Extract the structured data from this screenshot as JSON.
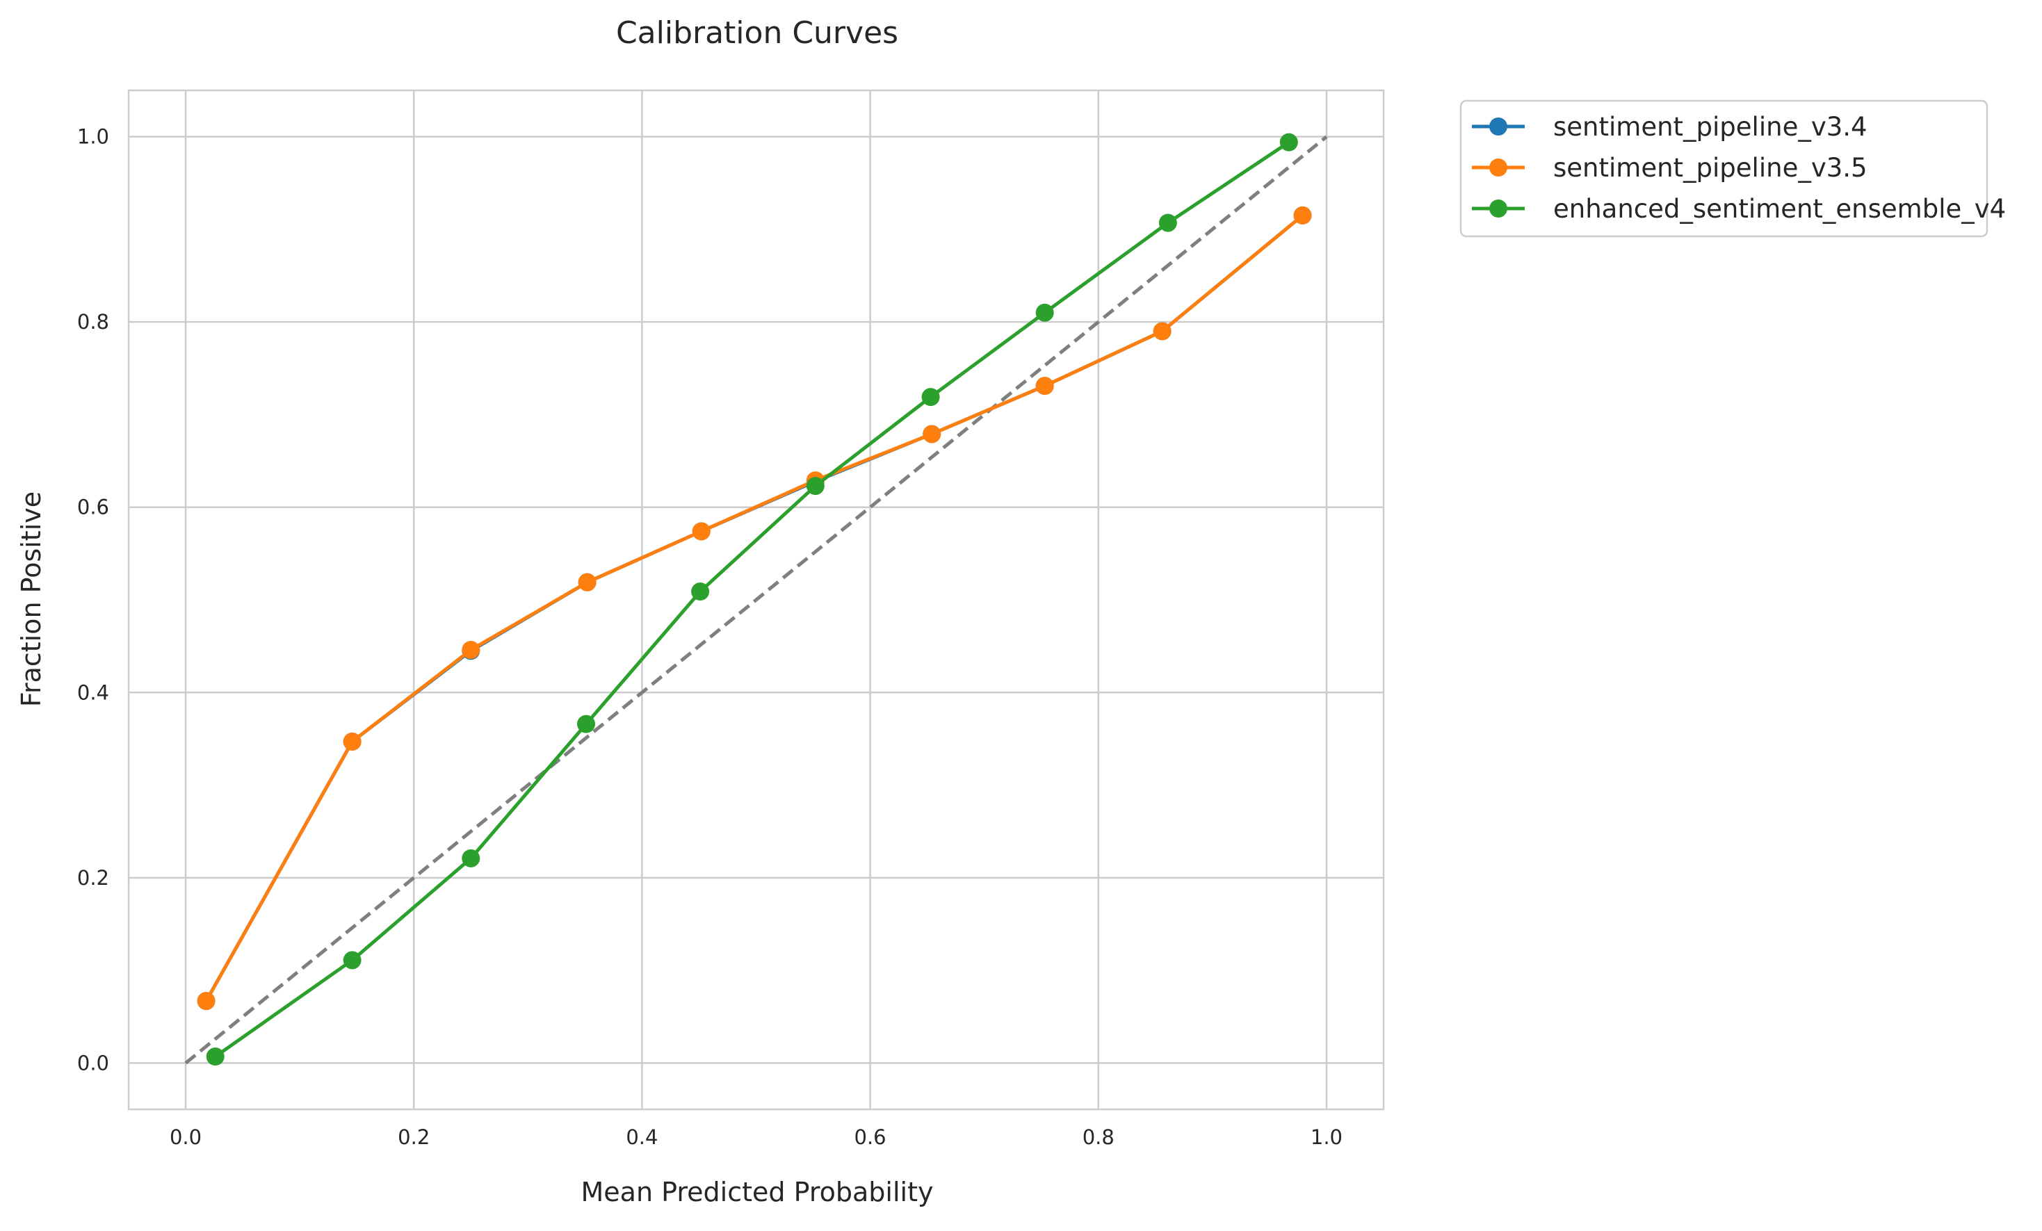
{
  "chart_data": {
    "type": "line",
    "title": "Calibration Curves",
    "xlabel": "Mean Predicted Probability",
    "ylabel": "Fraction Positive",
    "xlim": [
      -0.05,
      1.05
    ],
    "ylim": [
      -0.05,
      1.05
    ],
    "x_ticks": [
      0.0,
      0.2,
      0.4,
      0.6,
      0.8,
      1.0
    ],
    "y_ticks": [
      0.0,
      0.2,
      0.4,
      0.6,
      0.8,
      1.0
    ],
    "x_tick_labels": [
      "0.0",
      "0.2",
      "0.4",
      "0.6",
      "0.8",
      "1.0"
    ],
    "y_tick_labels": [
      "0.0",
      "0.2",
      "0.4",
      "0.6",
      "0.8",
      "1.0"
    ],
    "grid": true,
    "legend_position": "outside-top-right",
    "reference_line": {
      "style": "dashed",
      "color": "#7f7f7f",
      "x": [
        0.0,
        1.0
      ],
      "y": [
        0.0,
        1.0
      ]
    },
    "series": [
      {
        "name": "sentiment_pipeline_v3.4",
        "color": "#1f77b4",
        "marker": "circle",
        "x": [
          0.018,
          0.146,
          0.25,
          0.352,
          0.452,
          0.552,
          0.654,
          0.753,
          0.856,
          0.979
        ],
        "y": [
          0.067,
          0.347,
          0.445,
          0.519,
          0.574,
          0.628,
          0.679,
          0.731,
          0.79,
          0.915
        ]
      },
      {
        "name": "sentiment_pipeline_v3.5",
        "color": "#ff7f0e",
        "marker": "circle",
        "x": [
          0.018,
          0.146,
          0.25,
          0.352,
          0.452,
          0.552,
          0.654,
          0.753,
          0.856,
          0.979
        ],
        "y": [
          0.067,
          0.347,
          0.446,
          0.519,
          0.574,
          0.629,
          0.679,
          0.731,
          0.79,
          0.915
        ]
      },
      {
        "name": "enhanced_sentiment_ensemble_v4",
        "color": "#2ca02c",
        "marker": "circle",
        "x": [
          0.026,
          0.146,
          0.25,
          0.351,
          0.451,
          0.552,
          0.653,
          0.753,
          0.861,
          0.967
        ],
        "y": [
          0.007,
          0.111,
          0.221,
          0.366,
          0.509,
          0.623,
          0.719,
          0.81,
          0.907,
          0.994
        ]
      }
    ]
  }
}
